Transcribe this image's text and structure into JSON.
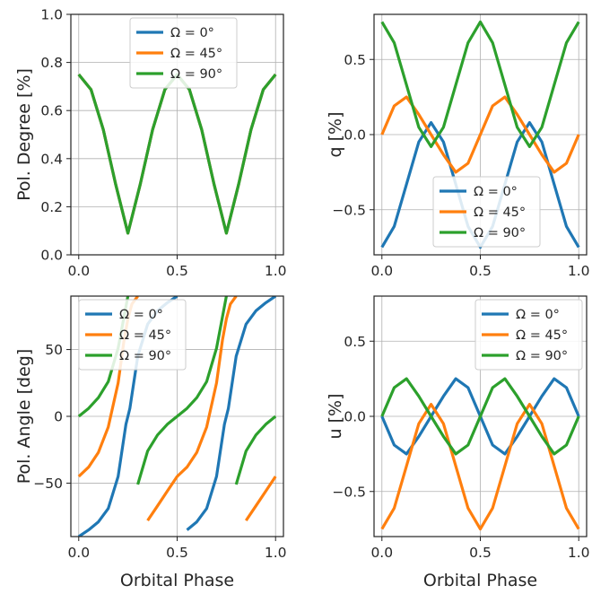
{
  "colors": {
    "omega0": "#1f77b4",
    "omega45": "#ff7f0e",
    "omega90": "#2ca02c"
  },
  "legend_labels": [
    "Ω = 0°",
    "Ω = 45°",
    "Ω = 90°"
  ],
  "chart_data": [
    {
      "type": "line",
      "title": "",
      "xlabel": "",
      "ylabel": "Pol. Degree [%]",
      "xlim": [
        -0.04,
        1.04
      ],
      "ylim": [
        0.0,
        1.0
      ],
      "xticks": [
        0.0,
        0.5,
        1.0
      ],
      "xticklabels": [
        "0.0",
        "0.5",
        "1.0"
      ],
      "yticks": [
        0.0,
        0.2,
        0.4,
        0.6,
        0.8,
        1.0
      ],
      "yticklabels": [
        "0.0",
        "0.2",
        "0.4",
        "0.6",
        "0.8",
        "1.0"
      ],
      "grid": true,
      "legend_position": "top-center",
      "series": [
        {
          "name": "Ω = 0°",
          "x": [
            0.0,
            0.0625,
            0.125,
            0.1875,
            0.25,
            0.3125,
            0.375,
            0.4375,
            0.5,
            0.5625,
            0.625,
            0.6875,
            0.75,
            0.8125,
            0.875,
            0.9375,
            1.0
          ],
          "y": [
            0.75,
            0.687,
            0.52,
            0.294,
            0.09,
            0.294,
            0.52,
            0.687,
            0.75,
            0.687,
            0.52,
            0.294,
            0.09,
            0.294,
            0.52,
            0.687,
            0.75
          ]
        },
        {
          "name": "Ω = 45°",
          "x": [
            0.0,
            0.0625,
            0.125,
            0.1875,
            0.25,
            0.3125,
            0.375,
            0.4375,
            0.5,
            0.5625,
            0.625,
            0.6875,
            0.75,
            0.8125,
            0.875,
            0.9375,
            1.0
          ],
          "y": [
            0.75,
            0.687,
            0.52,
            0.294,
            0.09,
            0.294,
            0.52,
            0.687,
            0.75,
            0.687,
            0.52,
            0.294,
            0.09,
            0.294,
            0.52,
            0.687,
            0.75
          ]
        },
        {
          "name": "Ω = 90°",
          "x": [
            0.0,
            0.0625,
            0.125,
            0.1875,
            0.25,
            0.3125,
            0.375,
            0.4375,
            0.5,
            0.5625,
            0.625,
            0.6875,
            0.75,
            0.8125,
            0.875,
            0.9375,
            1.0
          ],
          "y": [
            0.75,
            0.687,
            0.52,
            0.294,
            0.09,
            0.294,
            0.52,
            0.687,
            0.75,
            0.687,
            0.52,
            0.294,
            0.09,
            0.294,
            0.52,
            0.687,
            0.75
          ]
        }
      ]
    },
    {
      "type": "line",
      "title": "",
      "xlabel": "",
      "ylabel": "q [%]",
      "xlim": [
        -0.04,
        1.04
      ],
      "ylim": [
        -0.8,
        0.8
      ],
      "xticks": [
        0.0,
        0.5,
        1.0
      ],
      "xticklabels": [
        "0.0",
        "0.5",
        "1.0"
      ],
      "yticks": [
        -0.5,
        0.0,
        0.5
      ],
      "yticklabels": [
        "−0.5",
        "0.0",
        "0.5"
      ],
      "grid": true,
      "legend_position": "bottom-right",
      "series": [
        {
          "name": "Ω = 0°",
          "x": [
            0.0,
            0.0625,
            0.125,
            0.1875,
            0.25,
            0.3125,
            0.375,
            0.4375,
            0.5,
            0.5625,
            0.625,
            0.6875,
            0.75,
            0.8125,
            0.875,
            0.9375,
            1.0
          ],
          "y": [
            -0.75,
            -0.611,
            -0.33,
            -0.049,
            0.08,
            -0.049,
            -0.33,
            -0.611,
            -0.75,
            -0.611,
            -0.33,
            -0.049,
            0.08,
            -0.049,
            -0.33,
            -0.611,
            -0.75
          ]
        },
        {
          "name": "Ω = 45°",
          "x": [
            0.0,
            0.0625,
            0.125,
            0.1875,
            0.25,
            0.3125,
            0.375,
            0.4375,
            0.5,
            0.5625,
            0.625,
            0.6875,
            0.75,
            0.8125,
            0.875,
            0.9375,
            1.0
          ],
          "y": [
            0.0,
            0.191,
            0.25,
            0.134,
            0.0,
            -0.134,
            -0.25,
            -0.191,
            0.0,
            0.191,
            0.25,
            0.134,
            0.0,
            -0.134,
            -0.25,
            -0.191,
            0.0
          ]
        },
        {
          "name": "Ω = 90°",
          "x": [
            0.0,
            0.0625,
            0.125,
            0.1875,
            0.25,
            0.3125,
            0.375,
            0.4375,
            0.5,
            0.5625,
            0.625,
            0.6875,
            0.75,
            0.8125,
            0.875,
            0.9375,
            1.0
          ],
          "y": [
            0.75,
            0.611,
            0.33,
            0.049,
            -0.08,
            0.049,
            0.33,
            0.611,
            0.75,
            0.611,
            0.33,
            0.049,
            -0.08,
            0.049,
            0.33,
            0.611,
            0.75
          ]
        }
      ]
    },
    {
      "type": "line",
      "title": "",
      "xlabel": "Orbital Phase",
      "ylabel": "Pol. Angle [deg]",
      "xlim": [
        -0.04,
        1.04
      ],
      "ylim": [
        -90,
        90
      ],
      "xticks": [
        0.0,
        0.5,
        1.0
      ],
      "xticklabels": [
        "0.0",
        "0.5",
        "1.0"
      ],
      "yticks": [
        -50,
        0,
        50
      ],
      "yticklabels": [
        "−50",
        "0",
        "50"
      ],
      "grid": true,
      "legend_position": "top-left",
      "series": [
        {
          "name": "Ω = 0°",
          "x": [
            0.0,
            0.05,
            0.1,
            0.15,
            0.2,
            0.24,
            0.25,
            0.26,
            0.3,
            0.35,
            0.4,
            0.45,
            0.5,
            0.55,
            0.6,
            0.65,
            0.7,
            0.74,
            0.75,
            0.76,
            0.8,
            0.85,
            0.9,
            0.95,
            1.0
          ],
          "y": [
            -90,
            -85,
            -79,
            -69,
            -45,
            -6,
            0,
            6,
            45,
            69,
            79,
            85,
            90,
            -85,
            -79,
            -69,
            -45,
            -6,
            0,
            6,
            45,
            69,
            79,
            85,
            90
          ]
        },
        {
          "name": "Ω = 45°",
          "x": [
            0.0,
            0.05,
            0.1,
            0.15,
            0.2,
            0.23,
            0.25,
            0.27,
            0.3,
            0.35,
            0.4,
            0.45,
            0.5,
            0.55,
            0.6,
            0.65,
            0.7,
            0.73,
            0.75,
            0.77,
            0.8,
            0.85,
            0.9,
            0.95,
            1.0
          ],
          "y": [
            -45,
            -38,
            -27,
            -8,
            25,
            57,
            73,
            84,
            90,
            -78,
            -67,
            -56,
            -45,
            -38,
            -27,
            -8,
            25,
            57,
            73,
            84,
            90,
            -78,
            -67,
            -56,
            -45
          ]
        },
        {
          "name": "Ω = 90°",
          "x": [
            0.0,
            0.05,
            0.1,
            0.15,
            0.2,
            0.25,
            0.3,
            0.35,
            0.4,
            0.45,
            0.5,
            0.55,
            0.6,
            0.65,
            0.7,
            0.75,
            0.8,
            0.85,
            0.9,
            0.95,
            1.0
          ],
          "y": [
            0,
            6,
            14,
            26,
            51,
            90,
            -51,
            -26,
            -14,
            -6,
            0,
            6,
            14,
            26,
            51,
            90,
            -51,
            -26,
            -14,
            -6,
            0
          ]
        }
      ]
    },
    {
      "type": "line",
      "title": "",
      "xlabel": "Orbital Phase",
      "ylabel": "u [%]",
      "xlim": [
        -0.04,
        1.04
      ],
      "ylim": [
        -0.8,
        0.8
      ],
      "xticks": [
        0.0,
        0.5,
        1.0
      ],
      "xticklabels": [
        "0.0",
        "0.5",
        "1.0"
      ],
      "yticks": [
        -0.5,
        0.0,
        0.5
      ],
      "yticklabels": [
        "−0.5",
        "0.0",
        "0.5"
      ],
      "grid": true,
      "legend_position": "top-right",
      "series": [
        {
          "name": "Ω = 0°",
          "x": [
            0.0,
            0.0625,
            0.125,
            0.1875,
            0.25,
            0.3125,
            0.375,
            0.4375,
            0.5,
            0.5625,
            0.625,
            0.6875,
            0.75,
            0.8125,
            0.875,
            0.9375,
            1.0
          ],
          "y": [
            0.0,
            -0.191,
            -0.25,
            -0.134,
            0.0,
            0.134,
            0.25,
            0.191,
            0.0,
            -0.191,
            -0.25,
            -0.134,
            0.0,
            0.134,
            0.25,
            0.191,
            0.0
          ]
        },
        {
          "name": "Ω = 45°",
          "x": [
            0.0,
            0.0625,
            0.125,
            0.1875,
            0.25,
            0.3125,
            0.375,
            0.4375,
            0.5,
            0.5625,
            0.625,
            0.6875,
            0.75,
            0.8125,
            0.875,
            0.9375,
            1.0
          ],
          "y": [
            -0.75,
            -0.611,
            -0.33,
            -0.049,
            0.08,
            -0.049,
            -0.33,
            -0.611,
            -0.75,
            -0.611,
            -0.33,
            -0.049,
            0.08,
            -0.049,
            -0.33,
            -0.611,
            -0.75
          ]
        },
        {
          "name": "Ω = 90°",
          "x": [
            0.0,
            0.0625,
            0.125,
            0.1875,
            0.25,
            0.3125,
            0.375,
            0.4375,
            0.5,
            0.5625,
            0.625,
            0.6875,
            0.75,
            0.8125,
            0.875,
            0.9375,
            1.0
          ],
          "y": [
            0.0,
            0.191,
            0.25,
            0.134,
            0.0,
            -0.134,
            -0.25,
            -0.191,
            0.0,
            0.191,
            0.25,
            0.134,
            0.0,
            -0.134,
            -0.25,
            -0.191,
            0.0
          ]
        }
      ]
    }
  ]
}
